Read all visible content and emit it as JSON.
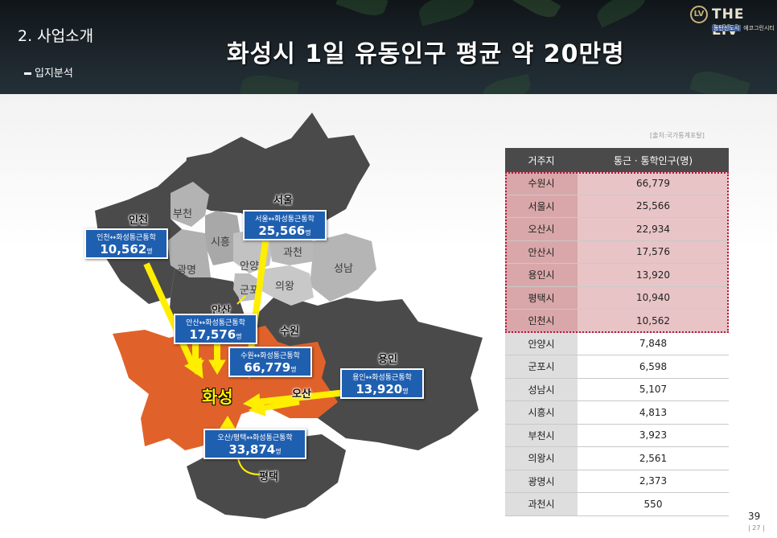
{
  "header": {
    "section_title": "2. 사업소개",
    "subsection": "입지분석",
    "main_title": "화성시 1일 유동인구 평균 약 20만명",
    "logo_mark": "LV",
    "logo_text": "THE LIV",
    "logo_sub_tag": "동탄신도시",
    "logo_sub": "에코그린시티"
  },
  "map": {
    "regions": {
      "bucheon": "부천",
      "siheung": "시흥",
      "gwangmyeong": "광명",
      "anyang": "안양",
      "gwacheon": "과천",
      "seongnam": "성남",
      "gunpo": "군포",
      "uiwang": "의왕"
    },
    "center": "화성",
    "flows": [
      {
        "city": "인천",
        "label": "인천↔화성통근통학",
        "value": "10,562",
        "unit": "명"
      },
      {
        "city": "서울",
        "label": "서울↔화성통근통학",
        "value": "25,566",
        "unit": "명"
      },
      {
        "city": "안산",
        "label": "안산↔화성통근통학",
        "value": "17,576",
        "unit": "명"
      },
      {
        "city": "수원",
        "label": "수원↔화성통근통학",
        "value": "66,779",
        "unit": "명"
      },
      {
        "city": "용인",
        "label": "용인↔화성통근통학",
        "value": "13,920",
        "unit": "명"
      },
      {
        "city": "오산",
        "label": "오산/평택↔화성통근통학",
        "value": "33,874",
        "unit": "명"
      },
      {
        "city": "평택",
        "label": "",
        "value": "",
        "unit": ""
      }
    ],
    "colors": {
      "center": "#e0622a",
      "outer": "#4d4d4d",
      "inner": "#b5b5b5",
      "arrow": "#ffee00",
      "box": "#1f5fb0"
    }
  },
  "table": {
    "source": "[출처:국가통계포탈]",
    "headers": [
      "거주지",
      "통근 · 통학인구(명)"
    ],
    "rows": [
      {
        "city": "수원시",
        "value": "66,779",
        "highlight": true
      },
      {
        "city": "서울시",
        "value": "25,566",
        "highlight": true
      },
      {
        "city": "오산시",
        "value": "22,934",
        "highlight": true
      },
      {
        "city": "안산시",
        "value": "17,576",
        "highlight": true
      },
      {
        "city": "용인시",
        "value": "13,920",
        "highlight": true
      },
      {
        "city": "평택시",
        "value": "10,940",
        "highlight": true
      },
      {
        "city": "인천시",
        "value": "10,562",
        "highlight": true
      },
      {
        "city": "안양시",
        "value": "7,848",
        "highlight": false
      },
      {
        "city": "군포시",
        "value": "6,598",
        "highlight": false
      },
      {
        "city": "성남시",
        "value": "5,107",
        "highlight": false
      },
      {
        "city": "시흥시",
        "value": "4,813",
        "highlight": false
      },
      {
        "city": "부천시",
        "value": "3,923",
        "highlight": false
      },
      {
        "city": "의왕시",
        "value": "2,561",
        "highlight": false
      },
      {
        "city": "광명시",
        "value": "2,373",
        "highlight": false
      },
      {
        "city": "과천시",
        "value": "550",
        "highlight": false
      }
    ],
    "highlight_color": "#c0143c"
  },
  "footer": {
    "page_number": "39",
    "page_sub": "| 27 |"
  }
}
